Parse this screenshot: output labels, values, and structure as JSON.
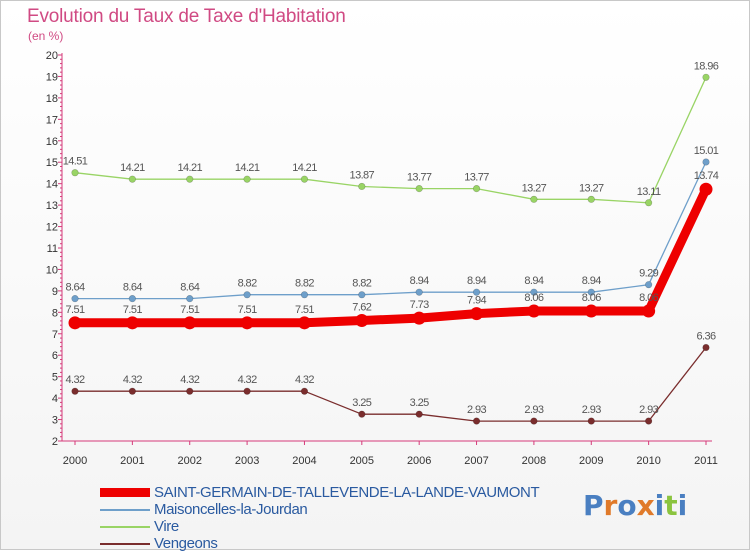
{
  "title": "Evolution du Taux de Taxe d'Habitation",
  "subtitle": "(en %)",
  "logo": {
    "text": "Proxiti",
    "colors": [
      "#4a7fc1",
      "#e07a2a",
      "#4a7fc1",
      "#e07a2a",
      "#4a7fc1",
      "#8bc43f",
      "#4a7fc1"
    ]
  },
  "chart_data": {
    "type": "line",
    "title": "Evolution du Taux de Taxe d'Habitation",
    "ylabel": "(en %)",
    "xlabel": "",
    "x": [
      "2000",
      "2001",
      "2002",
      "2003",
      "2004",
      "2005",
      "2006",
      "2007",
      "2008",
      "2009",
      "2010",
      "2011"
    ],
    "ylim": [
      2,
      20
    ],
    "yticks": [
      "2",
      "3",
      "4",
      "5",
      "6",
      "7",
      "8",
      "9",
      "10",
      "11",
      "12",
      "13",
      "14",
      "15",
      "16",
      "17",
      "18",
      "19",
      "20"
    ],
    "grid": false,
    "legend_position": "bottom-left",
    "series": [
      {
        "name": "SAINT-GERMAIN-DE-TALLEVENDE-LA-LANDE-VAUMONT",
        "color": "#ee0000",
        "emphasis": true,
        "values": [
          7.51,
          7.51,
          7.51,
          7.51,
          7.51,
          7.62,
          7.73,
          7.94,
          8.06,
          8.06,
          8.06,
          13.74
        ],
        "labels": [
          "7.51",
          "7.51",
          "7.51",
          "7.51",
          "7.51",
          "7.62",
          "7.73",
          "7.94",
          "8.06",
          "8.06",
          "8.06",
          "13.74"
        ]
      },
      {
        "name": "Maisoncelles-la-Jourdan",
        "color": "#6e9fca",
        "emphasis": false,
        "values": [
          8.64,
          8.64,
          8.64,
          8.82,
          8.82,
          8.82,
          8.94,
          8.94,
          8.94,
          8.94,
          9.29,
          15.01
        ],
        "labels": [
          "8.64",
          "8.64",
          "8.64",
          "8.82",
          "8.82",
          "8.82",
          "8.94",
          "8.94",
          "8.94",
          "8.94",
          "9.29",
          "15.01"
        ]
      },
      {
        "name": "Vire",
        "color": "#99d465",
        "emphasis": false,
        "values": [
          14.51,
          14.21,
          14.21,
          14.21,
          14.21,
          13.87,
          13.77,
          13.77,
          13.27,
          13.27,
          13.11,
          18.96
        ],
        "labels": [
          "14.51",
          "14.21",
          "14.21",
          "14.21",
          "14.21",
          "13.87",
          "13.77",
          "13.77",
          "13.27",
          "13.27",
          "13.11",
          "18.96"
        ]
      },
      {
        "name": "Vengeons",
        "color": "#7a2d2d",
        "emphasis": false,
        "values": [
          4.32,
          4.32,
          4.32,
          4.32,
          4.32,
          3.25,
          3.25,
          2.93,
          2.93,
          2.93,
          2.93,
          6.36
        ],
        "labels": [
          "4.32",
          "4.32",
          "4.32",
          "4.32",
          "4.32",
          "3.25",
          "3.25",
          "2.93",
          "2.93",
          "2.93",
          "2.93",
          "6.36"
        ]
      }
    ]
  }
}
